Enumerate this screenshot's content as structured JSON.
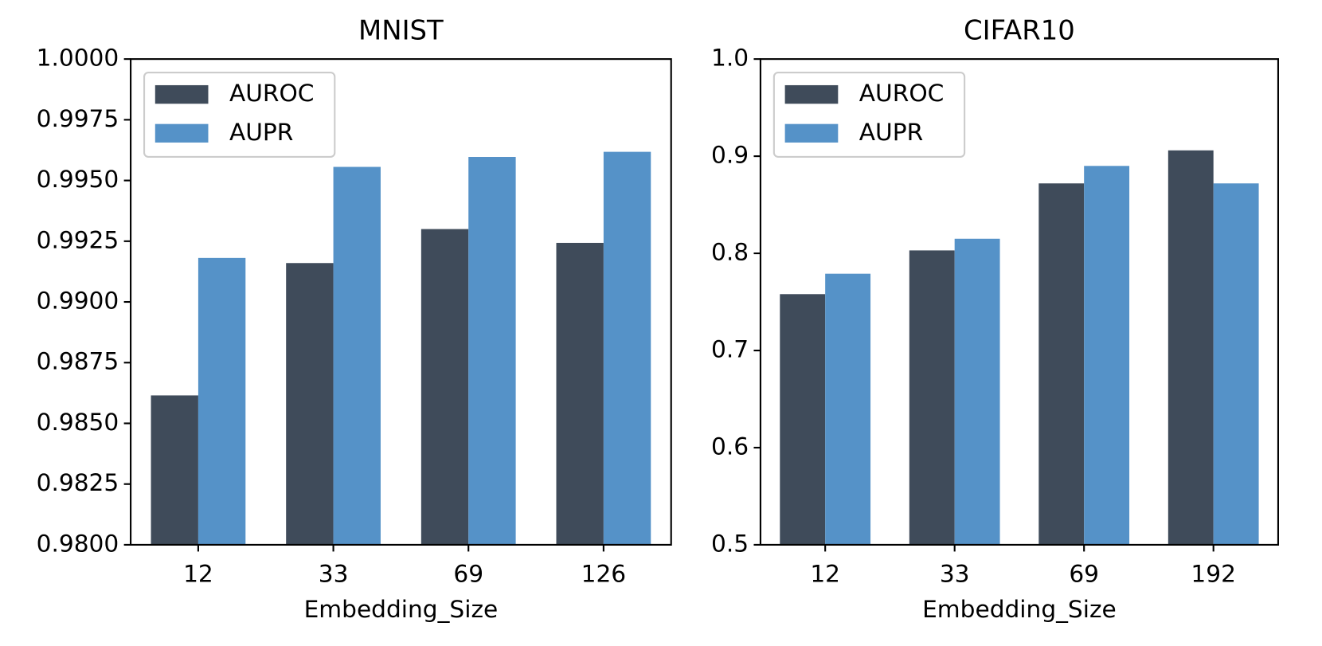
{
  "chart_data": [
    {
      "type": "bar",
      "title": "MNIST",
      "x_label": "Embedding_Size",
      "categories": [
        "12",
        "33",
        "69",
        "126"
      ],
      "series": [
        {
          "name": "AUROC",
          "color": "#3f4b5a",
          "values": [
            0.98615,
            0.9916,
            0.993,
            0.99243
          ]
        },
        {
          "name": "AUPR",
          "color": "#5592c8",
          "values": [
            0.99181,
            0.99556,
            0.99597,
            0.99618
          ]
        }
      ],
      "ylim": [
        0.98,
        1.0
      ],
      "yticks": [
        {
          "value": 0.98,
          "label": "0.9800"
        },
        0.9825,
        {
          "value": 0.985,
          "label": "0.9850"
        },
        0.9875,
        {
          "value": 0.99,
          "label": "0.9900"
        },
        0.9925,
        {
          "value": 0.995,
          "label": "0.9950"
        },
        0.9975,
        {
          "value": 1.0,
          "label": "1.0000"
        }
      ],
      "legend": "upper left"
    },
    {
      "type": "bar",
      "title": "CIFAR10",
      "x_label": "Embedding_Size",
      "categories": [
        "12",
        "33",
        "69",
        "192"
      ],
      "series": [
        {
          "name": "AUROC",
          "color": "#3f4b5a",
          "values": [
            0.758,
            0.803,
            0.872,
            0.906
          ]
        },
        {
          "name": "AUPR",
          "color": "#5592c8",
          "values": [
            0.779,
            0.815,
            0.89,
            0.872
          ]
        }
      ],
      "ylim": [
        0.5,
        1.0
      ],
      "yticks": [
        0.5,
        0.6,
        0.7,
        0.8,
        0.9,
        {
          "value": 1.0,
          "label": "1.0"
        }
      ],
      "legend": "upper left"
    }
  ]
}
